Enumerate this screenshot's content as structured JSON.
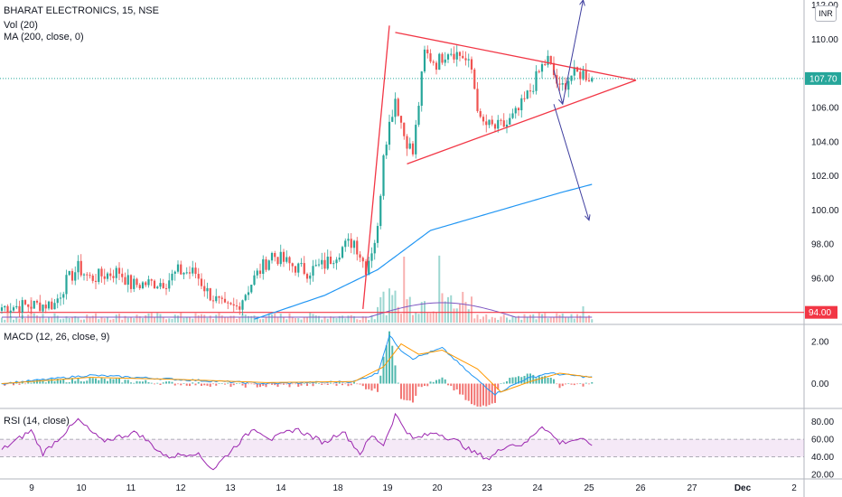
{
  "header": {
    "title": "BHARAT ELECTRONICS, 15, NSE",
    "vol_legend": "Vol (20)",
    "ma_legend": "MA (200, close, 0)",
    "currency": "INR"
  },
  "macd_legend": "MACD (12, 26, close, 9)",
  "rsi_legend": "RSI (14, close)",
  "colors": {
    "up": "#26a69a",
    "down": "#ef5350",
    "ma": "#2196f3",
    "macd": "#2196f3",
    "signal": "#ff9800",
    "rsi": "#9c27b0",
    "trendline": "#f23645",
    "arrow": "#3f3f9f",
    "last_price_bg": "#26a69a"
  },
  "chart_data": [
    {
      "type": "candlestick",
      "panel": "price",
      "x_labels": [
        "9",
        "10",
        "11",
        "12",
        "13",
        "14",
        "18",
        "19",
        "20",
        "23",
        "24",
        "25",
        "26",
        "27",
        "Dec",
        "2"
      ],
      "yticks": [
        96,
        98,
        100,
        102,
        104,
        106,
        110,
        112
      ],
      "ylim": [
        93.4,
        112.3
      ],
      "last_price": 107.7,
      "last_price_label": "107.70",
      "support_level": 94.0,
      "support_label": "94.00",
      "ohlc_anchors": [
        [
          0,
          94.3
        ],
        [
          18,
          94.5
        ],
        [
          22,
          95.8
        ],
        [
          26,
          96.6
        ],
        [
          30,
          96.0
        ],
        [
          40,
          96.4
        ],
        [
          44,
          95.6
        ],
        [
          56,
          95.8
        ],
        [
          60,
          96.4
        ],
        [
          66,
          96.3
        ],
        [
          70,
          95.2
        ],
        [
          76,
          94.2
        ],
        [
          80,
          94.3
        ],
        [
          86,
          96.0
        ],
        [
          92,
          97.4
        ],
        [
          98,
          96.8
        ],
        [
          104,
          96.4
        ],
        [
          110,
          96.8
        ],
        [
          116,
          97.8
        ],
        [
          120,
          98.2
        ],
        [
          124,
          96.6
        ],
        [
          128,
          98.8
        ],
        [
          130,
          103.5
        ],
        [
          134,
          106.6
        ],
        [
          137,
          104.4
        ],
        [
          140,
          103.3
        ],
        [
          144,
          109.2
        ],
        [
          148,
          108.6
        ],
        [
          152,
          109.4
        ],
        [
          157,
          109.0
        ],
        [
          160,
          108.2
        ],
        [
          163,
          105.1
        ],
        [
          168,
          104.8
        ],
        [
          172,
          105.0
        ],
        [
          176,
          105.8
        ],
        [
          180,
          107.0
        ],
        [
          184,
          108.4
        ],
        [
          186,
          108.8
        ],
        [
          190,
          107.0
        ],
        [
          194,
          107.9
        ],
        [
          198,
          108.0
        ],
        [
          201,
          107.7
        ]
      ],
      "ma200_anchors": [
        [
          86,
          93.6
        ],
        [
          110,
          95.0
        ],
        [
          128,
          96.5
        ],
        [
          146,
          98.8
        ],
        [
          170,
          100.0
        ],
        [
          190,
          101.0
        ],
        [
          201,
          101.5
        ]
      ],
      "trendlines": [
        {
          "from": [
            123,
            94.2
          ],
          "to": [
            132,
            110.8
          ]
        },
        {
          "from": [
            134,
            110.4
          ],
          "to": [
            216,
            107.6
          ]
        },
        {
          "from": [
            138,
            102.7
          ],
          "to": [
            216,
            107.6
          ]
        }
      ],
      "arrows": [
        {
          "from": [
            188,
            108.2
          ],
          "to": [
            191,
            106.2
          ]
        },
        {
          "from": [
            191,
            106.2
          ],
          "to": [
            198,
            112.3
          ]
        },
        {
          "from": [
            188,
            106.2
          ],
          "to": [
            200,
            99.4
          ]
        }
      ]
    },
    {
      "type": "line",
      "panel": "macd",
      "series": [
        {
          "values_anchors": [
            [
              0,
              0.0
            ],
            [
              30,
              0.4
            ],
            [
              60,
              0.2
            ],
            [
              90,
              0.0
            ],
            [
              120,
              0.1
            ],
            [
              128,
              0.5
            ],
            [
              132,
              2.3
            ],
            [
              136,
              1.6
            ],
            [
              140,
              1.2
            ],
            [
              150,
              1.7
            ],
            [
              160,
              0.4
            ],
            [
              168,
              -0.5
            ],
            [
              178,
              0.2
            ],
            [
              186,
              0.5
            ],
            [
              201,
              0.3
            ]
          ]
        },
        {
          "values_anchors": [
            [
              0,
              0.0
            ],
            [
              30,
              0.3
            ],
            [
              60,
              0.2
            ],
            [
              90,
              0.05
            ],
            [
              120,
              0.1
            ],
            [
              130,
              0.8
            ],
            [
              136,
              1.9
            ],
            [
              142,
              1.4
            ],
            [
              150,
              1.6
            ],
            [
              162,
              0.7
            ],
            [
              170,
              -0.4
            ],
            [
              180,
              0.1
            ],
            [
              190,
              0.5
            ],
            [
              201,
              0.3
            ]
          ]
        }
      ],
      "yticks": [
        2.0,
        0.0
      ],
      "ylim": [
        -1.1,
        2.7
      ]
    },
    {
      "type": "line",
      "panel": "rsi",
      "values_anchors": [
        [
          0,
          48
        ],
        [
          10,
          70
        ],
        [
          14,
          44
        ],
        [
          26,
          82
        ],
        [
          34,
          58
        ],
        [
          46,
          68
        ],
        [
          56,
          40
        ],
        [
          66,
          45
        ],
        [
          72,
          26
        ],
        [
          80,
          54
        ],
        [
          86,
          73
        ],
        [
          92,
          60
        ],
        [
          100,
          72
        ],
        [
          110,
          56
        ],
        [
          116,
          70
        ],
        [
          122,
          44
        ],
        [
          126,
          64
        ],
        [
          130,
          54
        ],
        [
          134,
          88
        ],
        [
          140,
          60
        ],
        [
          148,
          68
        ],
        [
          156,
          56
        ],
        [
          160,
          46
        ],
        [
          166,
          38
        ],
        [
          172,
          54
        ],
        [
          178,
          54
        ],
        [
          184,
          76
        ],
        [
          190,
          56
        ],
        [
          196,
          60
        ],
        [
          201,
          55
        ]
      ],
      "band": [
        40,
        60
      ],
      "yticks": [
        80.0,
        60.0,
        40.0,
        20.0
      ],
      "ylim": [
        15,
        93
      ]
    }
  ]
}
